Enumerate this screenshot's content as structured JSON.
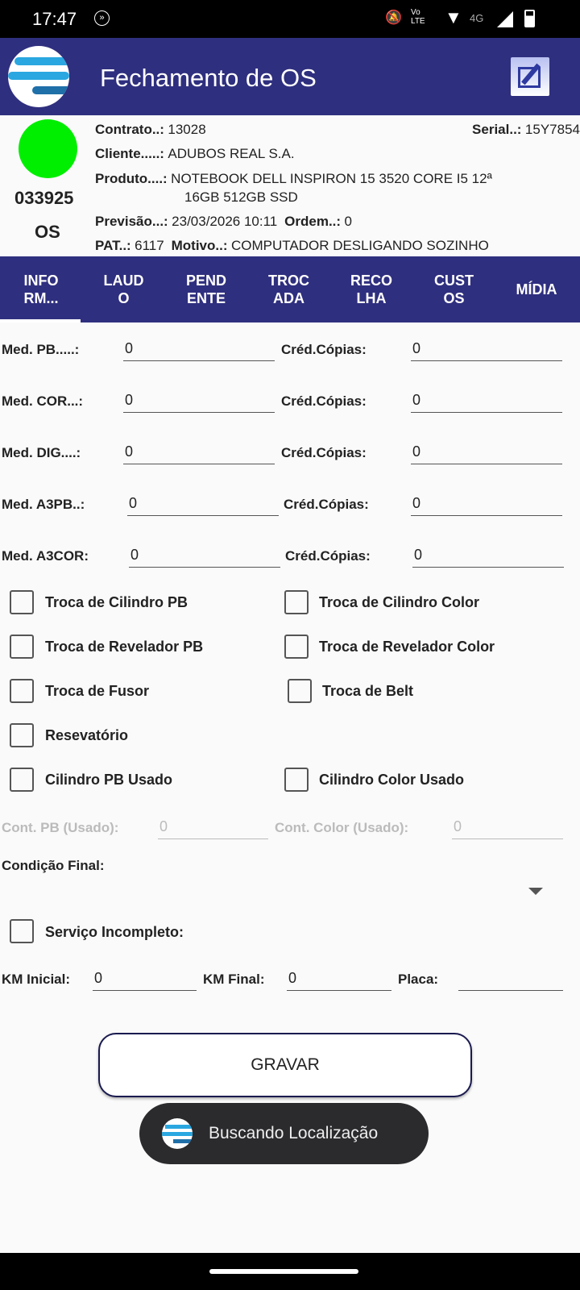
{
  "status": {
    "time": "17:47",
    "network": "4G"
  },
  "appbar": {
    "title": "Fechamento de OS",
    "edit_icon": "edit-icon",
    "logo": "app-logo"
  },
  "info": {
    "status_color": "#00ee00",
    "os_number": "033925",
    "os_label": "OS",
    "contrato_label": "Contrato..:",
    "contrato": "13028",
    "serial_label": "Serial..:",
    "serial": "15Y7854",
    "cliente_label": "Cliente.....:",
    "cliente": "ADUBOS REAL S.A.",
    "produto_label": "Produto....:",
    "produto_1": "NOTEBOOK DELL INSPIRON 15 3520 CORE I5 12ª",
    "produto_2": "16GB 512GB SSD",
    "previsao_label": "Previsão...:",
    "previsao": "23/03/2026 10:11",
    "ordem_label": "Ordem..:",
    "ordem": "0",
    "pat_label": "PAT..:",
    "pat": "6117",
    "motivo_label": "Motivo..:",
    "motivo": "COMPUTADOR DESLIGANDO SOZINHO"
  },
  "tabs": [
    {
      "l1": "INFO",
      "l2": "RM..."
    },
    {
      "l1": "LAUD",
      "l2": "O"
    },
    {
      "l1": "PEND",
      "l2": "ENTE"
    },
    {
      "l1": "TROC",
      "l2": "ADA"
    },
    {
      "l1": "RECO",
      "l2": "LHA"
    },
    {
      "l1": "CUST",
      "l2": "OS"
    },
    {
      "l1": "MÍDIA",
      "l2": ""
    }
  ],
  "meters": [
    {
      "label": "Med. PB.....:",
      "value": "0",
      "cred_label": "Créd.Cópias:",
      "cred": "0"
    },
    {
      "label": "Med. COR...:",
      "value": "0",
      "cred_label": "Créd.Cópias:",
      "cred": "0"
    },
    {
      "label": "Med. DIG....:",
      "value": "0",
      "cred_label": "Créd.Cópias:",
      "cred": "0"
    },
    {
      "label": "Med. A3PB..:",
      "value": "0",
      "cred_label": "Créd.Cópias:",
      "cred": "0"
    },
    {
      "label": "Med. A3COR:",
      "value": "0",
      "cred_label": "Créd.Cópias:",
      "cred": "0"
    }
  ],
  "checks": {
    "c1": "Troca de Cilindro PB",
    "c2": "Troca de Cilindro Color",
    "c3": "Troca de Revelador PB",
    "c4": "Troca de Revelador Color",
    "c5": "Troca de Fusor",
    "c6": "Troca de Belt",
    "c7": "Resevatório",
    "c8": "Cilindro PB Usado",
    "c9": "Cilindro Color Usado"
  },
  "cont": {
    "pb_label": "Cont. PB (Usado):",
    "pb": "0",
    "color_label": "Cont. Color (Usado):",
    "color": "0"
  },
  "condicao_label": "Condição Final:",
  "servico_incompleto": "Serviço Incompleto:",
  "km": {
    "ini_label": "KM Inicial:",
    "ini": "0",
    "fin_label": "KM Final:",
    "fin": "0",
    "placa_label": "Placa:",
    "placa": ""
  },
  "save_label": "GRAVAR",
  "toast": "Buscando Localização"
}
